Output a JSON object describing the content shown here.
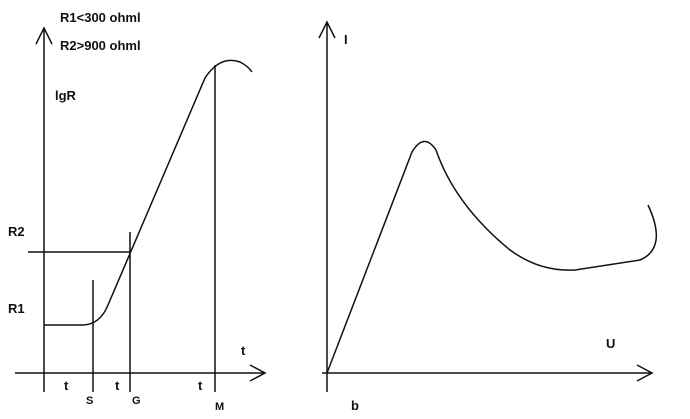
{
  "left": {
    "notes": [
      "R1<300 ohml",
      "R2>900 ohml"
    ],
    "y_axis_label": "lgR",
    "x_axis_label": "t",
    "levels": [
      "R2",
      "R1"
    ],
    "times": [
      {
        "t": "t",
        "sub": "S"
      },
      {
        "t": "t",
        "sub": "G"
      },
      {
        "t": "t",
        "sub": "M"
      }
    ]
  },
  "right": {
    "y_axis_label": "I",
    "x_axis_label": "U",
    "caption": "b"
  }
}
